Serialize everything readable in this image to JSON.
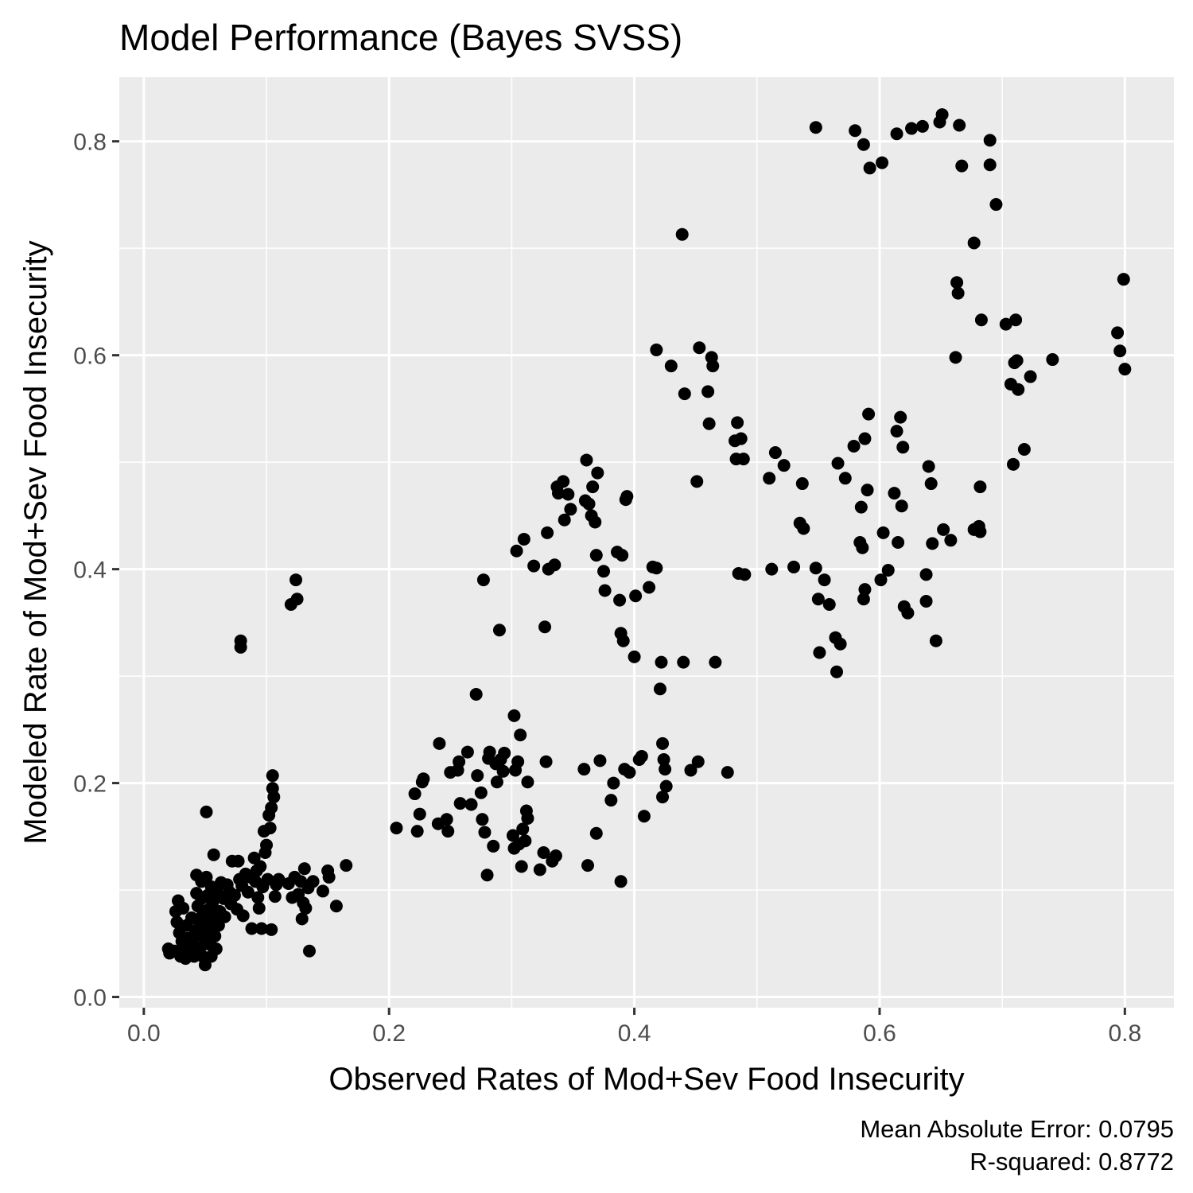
{
  "chart_data": {
    "type": "scatter",
    "title": "Model Performance (Bayes SVSS)",
    "xlabel": "Observed Rates of Mod+Sev Food Insecurity",
    "ylabel": "Modeled Rate of Mod+Sev Food Insecurity",
    "xlim": [
      -0.02,
      0.84
    ],
    "ylim": [
      -0.01,
      0.86
    ],
    "x_ticks": [
      {
        "value": 0.0,
        "label": "0.0"
      },
      {
        "value": 0.2,
        "label": "0.2"
      },
      {
        "value": 0.4,
        "label": "0.4"
      },
      {
        "value": 0.6,
        "label": "0.6"
      },
      {
        "value": 0.8,
        "label": "0.8"
      }
    ],
    "y_ticks": [
      {
        "value": 0.0,
        "label": "0.0"
      },
      {
        "value": 0.2,
        "label": "0.2"
      },
      {
        "value": 0.4,
        "label": "0.4"
      },
      {
        "value": 0.6,
        "label": "0.6"
      },
      {
        "value": 0.8,
        "label": "0.8"
      }
    ],
    "grid": true,
    "panel_background": "#ebebeb",
    "grid_color": "#ffffff",
    "point_color": "#000000",
    "caption_lines": [
      "Mean Absolute Error: 0.0795",
      "R-squared: 0.8772"
    ],
    "points": [
      [
        0.02,
        0.045
      ],
      [
        0.021,
        0.041
      ],
      [
        0.025,
        0.043
      ],
      [
        0.026,
        0.08
      ],
      [
        0.027,
        0.07
      ],
      [
        0.028,
        0.09
      ],
      [
        0.029,
        0.06
      ],
      [
        0.03,
        0.038
      ],
      [
        0.031,
        0.052
      ],
      [
        0.032,
        0.083
      ],
      [
        0.033,
        0.048
      ],
      [
        0.034,
        0.036
      ],
      [
        0.035,
        0.067
      ],
      [
        0.036,
        0.055
      ],
      [
        0.038,
        0.042
      ],
      [
        0.039,
        0.074
      ],
      [
        0.04,
        0.05
      ],
      [
        0.041,
        0.038
      ],
      [
        0.042,
        0.062
      ],
      [
        0.043,
        0.114
      ],
      [
        0.043,
        0.097
      ],
      [
        0.044,
        0.085
      ],
      [
        0.045,
        0.071
      ],
      [
        0.045,
        0.058
      ],
      [
        0.046,
        0.046
      ],
      [
        0.047,
        0.108
      ],
      [
        0.047,
        0.092
      ],
      [
        0.048,
        0.077
      ],
      [
        0.048,
        0.038
      ],
      [
        0.049,
        0.068
      ],
      [
        0.05,
        0.054
      ],
      [
        0.05,
        0.03
      ],
      [
        0.051,
        0.112
      ],
      [
        0.051,
        0.173
      ],
      [
        0.052,
        0.095
      ],
      [
        0.053,
        0.082
      ],
      [
        0.053,
        0.064
      ],
      [
        0.054,
        0.049
      ],
      [
        0.055,
        0.103
      ],
      [
        0.055,
        0.038
      ],
      [
        0.056,
        0.088
      ],
      [
        0.056,
        0.074
      ],
      [
        0.057,
        0.133
      ],
      [
        0.058,
        0.057
      ],
      [
        0.059,
        0.045
      ],
      [
        0.06,
        0.098
      ],
      [
        0.061,
        0.067
      ],
      [
        0.062,
        0.08
      ],
      [
        0.063,
        0.107
      ],
      [
        0.065,
        0.092
      ],
      [
        0.066,
        0.075
      ],
      [
        0.068,
        0.105
      ],
      [
        0.07,
        0.098
      ],
      [
        0.071,
        0.087
      ],
      [
        0.072,
        0.127
      ],
      [
        0.074,
        0.095
      ],
      [
        0.076,
        0.082
      ],
      [
        0.077,
        0.127
      ],
      [
        0.078,
        0.11
      ],
      [
        0.079,
        0.333
      ],
      [
        0.079,
        0.327
      ],
      [
        0.08,
        0.104
      ],
      [
        0.081,
        0.076
      ],
      [
        0.083,
        0.115
      ],
      [
        0.085,
        0.098
      ],
      [
        0.087,
        0.112
      ],
      [
        0.088,
        0.064
      ],
      [
        0.09,
        0.13
      ],
      [
        0.091,
        0.108
      ],
      [
        0.092,
        0.118
      ],
      [
        0.093,
        0.093
      ],
      [
        0.094,
        0.083
      ],
      [
        0.095,
        0.122
      ],
      [
        0.096,
        0.064
      ],
      [
        0.097,
        0.103
      ],
      [
        0.098,
        0.155
      ],
      [
        0.099,
        0.135
      ],
      [
        0.1,
        0.142
      ],
      [
        0.101,
        0.11
      ],
      [
        0.102,
        0.17
      ],
      [
        0.103,
        0.158
      ],
      [
        0.104,
        0.063
      ],
      [
        0.104,
        0.177
      ],
      [
        0.105,
        0.195
      ],
      [
        0.105,
        0.207
      ],
      [
        0.106,
        0.187
      ],
      [
        0.107,
        0.094
      ],
      [
        0.108,
        0.105
      ],
      [
        0.11,
        0.11
      ],
      [
        0.118,
        0.106
      ],
      [
        0.12,
        0.367
      ],
      [
        0.121,
        0.093
      ],
      [
        0.123,
        0.112
      ],
      [
        0.124,
        0.39
      ],
      [
        0.125,
        0.372
      ],
      [
        0.126,
        0.096
      ],
      [
        0.128,
        0.108
      ],
      [
        0.129,
        0.073
      ],
      [
        0.13,
        0.088
      ],
      [
        0.131,
        0.12
      ],
      [
        0.132,
        0.083
      ],
      [
        0.134,
        0.102
      ],
      [
        0.135,
        0.043
      ],
      [
        0.138,
        0.108
      ],
      [
        0.146,
        0.099
      ],
      [
        0.15,
        0.118
      ],
      [
        0.151,
        0.112
      ],
      [
        0.157,
        0.085
      ],
      [
        0.165,
        0.123
      ],
      [
        0.206,
        0.158
      ],
      [
        0.221,
        0.19
      ],
      [
        0.223,
        0.155
      ],
      [
        0.225,
        0.171
      ],
      [
        0.227,
        0.201
      ],
      [
        0.228,
        0.204
      ],
      [
        0.24,
        0.162
      ],
      [
        0.241,
        0.237
      ],
      [
        0.247,
        0.166
      ],
      [
        0.248,
        0.155
      ],
      [
        0.25,
        0.21
      ],
      [
        0.256,
        0.212
      ],
      [
        0.257,
        0.22
      ],
      [
        0.258,
        0.181
      ],
      [
        0.264,
        0.229
      ],
      [
        0.267,
        0.18
      ],
      [
        0.271,
        0.283
      ],
      [
        0.272,
        0.207
      ],
      [
        0.275,
        0.191
      ],
      [
        0.276,
        0.166
      ],
      [
        0.277,
        0.39
      ],
      [
        0.278,
        0.154
      ],
      [
        0.28,
        0.114
      ],
      [
        0.281,
        0.223
      ],
      [
        0.282,
        0.229
      ],
      [
        0.285,
        0.141
      ],
      [
        0.287,
        0.218
      ],
      [
        0.288,
        0.201
      ],
      [
        0.29,
        0.343
      ],
      [
        0.291,
        0.222
      ],
      [
        0.293,
        0.211
      ],
      [
        0.294,
        0.228
      ],
      [
        0.301,
        0.151
      ],
      [
        0.302,
        0.263
      ],
      [
        0.302,
        0.139
      ],
      [
        0.303,
        0.212
      ],
      [
        0.304,
        0.417
      ],
      [
        0.305,
        0.22
      ],
      [
        0.306,
        0.143
      ],
      [
        0.307,
        0.245
      ],
      [
        0.308,
        0.122
      ],
      [
        0.309,
        0.157
      ],
      [
        0.31,
        0.428
      ],
      [
        0.311,
        0.146
      ],
      [
        0.312,
        0.174
      ],
      [
        0.313,
        0.201
      ],
      [
        0.313,
        0.167
      ],
      [
        0.318,
        0.403
      ],
      [
        0.323,
        0.119
      ],
      [
        0.326,
        0.135
      ],
      [
        0.327,
        0.346
      ],
      [
        0.328,
        0.22
      ],
      [
        0.329,
        0.434
      ],
      [
        0.33,
        0.4
      ],
      [
        0.333,
        0.127
      ],
      [
        0.335,
        0.404
      ],
      [
        0.336,
        0.132
      ],
      [
        0.337,
        0.477
      ],
      [
        0.338,
        0.471
      ],
      [
        0.342,
        0.482
      ],
      [
        0.343,
        0.446
      ],
      [
        0.346,
        0.47
      ],
      [
        0.348,
        0.456
      ],
      [
        0.359,
        0.213
      ],
      [
        0.36,
        0.464
      ],
      [
        0.361,
        0.502
      ],
      [
        0.362,
        0.123
      ],
      [
        0.363,
        0.461
      ],
      [
        0.365,
        0.45
      ],
      [
        0.366,
        0.477
      ],
      [
        0.368,
        0.444
      ],
      [
        0.369,
        0.153
      ],
      [
        0.369,
        0.413
      ],
      [
        0.37,
        0.49
      ],
      [
        0.372,
        0.221
      ],
      [
        0.375,
        0.398
      ],
      [
        0.376,
        0.38
      ],
      [
        0.381,
        0.184
      ],
      [
        0.383,
        0.2
      ],
      [
        0.386,
        0.416
      ],
      [
        0.388,
        0.371
      ],
      [
        0.389,
        0.108
      ],
      [
        0.389,
        0.34
      ],
      [
        0.39,
        0.413
      ],
      [
        0.391,
        0.333
      ],
      [
        0.392,
        0.213
      ],
      [
        0.393,
        0.465
      ],
      [
        0.394,
        0.468
      ],
      [
        0.396,
        0.21
      ],
      [
        0.4,
        0.318
      ],
      [
        0.401,
        0.375
      ],
      [
        0.404,
        0.222
      ],
      [
        0.406,
        0.225
      ],
      [
        0.408,
        0.169
      ],
      [
        0.412,
        0.383
      ],
      [
        0.415,
        0.402
      ],
      [
        0.418,
        0.605
      ],
      [
        0.418,
        0.401
      ],
      [
        0.421,
        0.288
      ],
      [
        0.422,
        0.313
      ],
      [
        0.423,
        0.237
      ],
      [
        0.423,
        0.187
      ],
      [
        0.424,
        0.222
      ],
      [
        0.425,
        0.213
      ],
      [
        0.426,
        0.197
      ],
      [
        0.43,
        0.59
      ],
      [
        0.439,
        0.713
      ],
      [
        0.44,
        0.313
      ],
      [
        0.441,
        0.564
      ],
      [
        0.446,
        0.212
      ],
      [
        0.451,
        0.482
      ],
      [
        0.452,
        0.22
      ],
      [
        0.453,
        0.607
      ],
      [
        0.46,
        0.566
      ],
      [
        0.461,
        0.536
      ],
      [
        0.463,
        0.598
      ],
      [
        0.464,
        0.59
      ],
      [
        0.466,
        0.313
      ],
      [
        0.476,
        0.21
      ],
      [
        0.482,
        0.52
      ],
      [
        0.483,
        0.503
      ],
      [
        0.484,
        0.537
      ],
      [
        0.485,
        0.396
      ],
      [
        0.487,
        0.522
      ],
      [
        0.489,
        0.503
      ],
      [
        0.49,
        0.395
      ],
      [
        0.51,
        0.485
      ],
      [
        0.512,
        0.4
      ],
      [
        0.515,
        0.509
      ],
      [
        0.522,
        0.497
      ],
      [
        0.53,
        0.402
      ],
      [
        0.535,
        0.443
      ],
      [
        0.537,
        0.48
      ],
      [
        0.538,
        0.438
      ],
      [
        0.548,
        0.813
      ],
      [
        0.548,
        0.401
      ],
      [
        0.55,
        0.372
      ],
      [
        0.551,
        0.322
      ],
      [
        0.555,
        0.39
      ],
      [
        0.559,
        0.367
      ],
      [
        0.564,
        0.336
      ],
      [
        0.565,
        0.304
      ],
      [
        0.566,
        0.499
      ],
      [
        0.568,
        0.33
      ],
      [
        0.572,
        0.485
      ],
      [
        0.579,
        0.515
      ],
      [
        0.58,
        0.81
      ],
      [
        0.584,
        0.425
      ],
      [
        0.585,
        0.458
      ],
      [
        0.586,
        0.42
      ],
      [
        0.587,
        0.797
      ],
      [
        0.587,
        0.372
      ],
      [
        0.588,
        0.522
      ],
      [
        0.588,
        0.381
      ],
      [
        0.59,
        0.474
      ],
      [
        0.591,
        0.545
      ],
      [
        0.592,
        0.775
      ],
      [
        0.601,
        0.39
      ],
      [
        0.602,
        0.78
      ],
      [
        0.603,
        0.434
      ],
      [
        0.607,
        0.399
      ],
      [
        0.612,
        0.471
      ],
      [
        0.614,
        0.807
      ],
      [
        0.614,
        0.529
      ],
      [
        0.615,
        0.425
      ],
      [
        0.617,
        0.542
      ],
      [
        0.618,
        0.459
      ],
      [
        0.619,
        0.514
      ],
      [
        0.62,
        0.365
      ],
      [
        0.623,
        0.359
      ],
      [
        0.626,
        0.812
      ],
      [
        0.635,
        0.814
      ],
      [
        0.638,
        0.395
      ],
      [
        0.638,
        0.37
      ],
      [
        0.64,
        0.496
      ],
      [
        0.642,
        0.48
      ],
      [
        0.643,
        0.424
      ],
      [
        0.646,
        0.333
      ],
      [
        0.649,
        0.818
      ],
      [
        0.651,
        0.825
      ],
      [
        0.652,
        0.437
      ],
      [
        0.658,
        0.427
      ],
      [
        0.662,
        0.598
      ],
      [
        0.663,
        0.668
      ],
      [
        0.664,
        0.658
      ],
      [
        0.665,
        0.815
      ],
      [
        0.667,
        0.777
      ],
      [
        0.677,
        0.705
      ],
      [
        0.677,
        0.437
      ],
      [
        0.681,
        0.44
      ],
      [
        0.682,
        0.477
      ],
      [
        0.682,
        0.435
      ],
      [
        0.683,
        0.633
      ],
      [
        0.69,
        0.801
      ],
      [
        0.69,
        0.778
      ],
      [
        0.695,
        0.741
      ],
      [
        0.703,
        0.629
      ],
      [
        0.707,
        0.573
      ],
      [
        0.709,
        0.498
      ],
      [
        0.71,
        0.593
      ],
      [
        0.711,
        0.633
      ],
      [
        0.712,
        0.595
      ],
      [
        0.713,
        0.568
      ],
      [
        0.718,
        0.512
      ],
      [
        0.723,
        0.58
      ],
      [
        0.741,
        0.596
      ],
      [
        0.794,
        0.621
      ],
      [
        0.796,
        0.604
      ],
      [
        0.799,
        0.671
      ],
      [
        0.8,
        0.587
      ]
    ]
  }
}
